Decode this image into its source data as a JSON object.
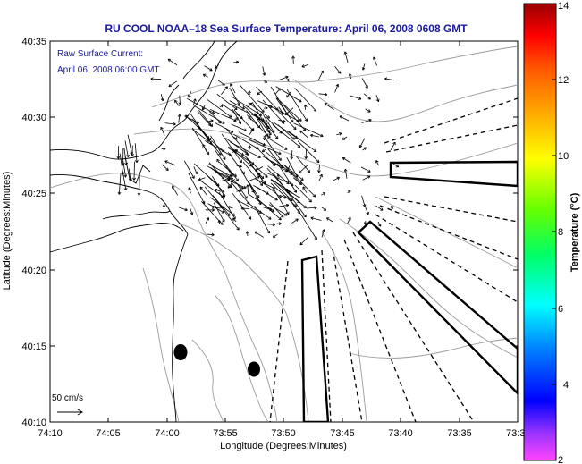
{
  "title": "RU COOL  NOAA–18  Sea Surface Temperature:  April 06, 2008 0608 GMT",
  "annotation": {
    "line1": "Raw Surface Current:",
    "line2": "April 06, 2008 06:00 GMT"
  },
  "scale_label": "50 cm/s",
  "x_axis": {
    "label": "Longitude (Degrees:Minutes)",
    "ticks": [
      "74:10",
      "74:05",
      "74:00",
      "73:55",
      "73:50",
      "73:45",
      "73:40",
      "73:35",
      "73:3"
    ]
  },
  "y_axis": {
    "label": "Latitude (Degrees:Minutes)",
    "ticks": [
      "40:35",
      "40:30",
      "40:25",
      "40:20",
      "40:15",
      "40:10"
    ]
  },
  "colorbar": {
    "label": "Temperature (°C)",
    "ticks": [
      "14",
      "12",
      "10",
      "8",
      "6",
      "4",
      "2"
    ],
    "colors": [
      "#ff44ff",
      "#9933ff",
      "#0000ff",
      "#0088ff",
      "#00ffff",
      "#00ff66",
      "#66ff00",
      "#ffff00",
      "#ffaa00",
      "#ff5500",
      "#ff0000",
      "#990000"
    ]
  },
  "style": {
    "title_color": "#1a1aa0",
    "coast_color": "#000000",
    "contour_color": "#999999"
  }
}
